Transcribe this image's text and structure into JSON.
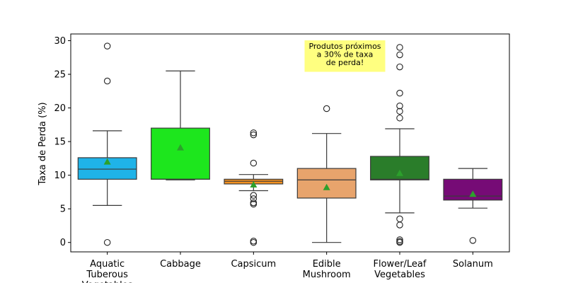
{
  "chart_data": {
    "type": "box",
    "ylabel": "Taxa de Perda (%)",
    "xlabel": "",
    "ylim": [
      -1.4,
      31
    ],
    "yticks": [
      0,
      5,
      10,
      15,
      20,
      25,
      30
    ],
    "grid": false,
    "legend": "none",
    "categories": [
      {
        "label_lines": [
          "Aquatic",
          "Tuberous",
          "Vegetables"
        ],
        "color": "#1fb3e8",
        "q1": 9.4,
        "median": 10.9,
        "q3": 12.6,
        "whisker_low": 5.5,
        "whisker_high": 16.6,
        "mean": 12.0,
        "outliers": [
          0.0,
          24.0,
          29.2
        ]
      },
      {
        "label_lines": [
          "Cabbage"
        ],
        "color": "#1de61d",
        "q1": 9.4,
        "median": 9.4,
        "q3": 17.0,
        "whisker_low": 9.3,
        "whisker_high": 25.5,
        "mean": 14.1,
        "outliers": []
      },
      {
        "label_lines": [
          "Capsicum"
        ],
        "color": "#f39120",
        "q1": 8.7,
        "median": 9.1,
        "q3": 9.4,
        "whisker_low": 7.7,
        "whisker_high": 10.1,
        "mean": 8.6,
        "outliers": [
          0.0,
          0.2,
          5.7,
          5.9,
          6.5,
          7.0,
          11.8,
          16.0,
          16.3
        ]
      },
      {
        "label_lines": [
          "Edible",
          "Mushroom"
        ],
        "color": "#e8a46c",
        "q1": 6.6,
        "median": 9.3,
        "q3": 11.0,
        "whisker_low": 0.0,
        "whisker_high": 16.2,
        "mean": 8.2,
        "outliers": [
          19.9
        ]
      },
      {
        "label_lines": [
          "Flower/Leaf",
          "Vegetables"
        ],
        "color": "#2a7d2a",
        "q1": 9.3,
        "median": 9.4,
        "q3": 12.8,
        "whisker_low": 4.4,
        "whisker_high": 16.9,
        "mean": 10.3,
        "outliers": [
          0.0,
          0.15,
          0.4,
          2.6,
          3.5,
          18.5,
          19.5,
          20.3,
          22.2,
          26.1,
          27.9,
          29.0
        ]
      },
      {
        "label_lines": [
          "Solanum"
        ],
        "color": "#760b76",
        "q1": 6.3,
        "median": 6.9,
        "q3": 9.4,
        "whisker_low": 5.1,
        "whisker_high": 11.0,
        "mean": 7.2,
        "outliers": [
          0.3
        ]
      }
    ],
    "annotation": {
      "lines": [
        "Produtos próximos",
        "a 30% de taxa",
        "de perda!"
      ],
      "background": "#ffff80",
      "anchor_category": 3.25,
      "anchor_y": 29.0
    },
    "mean_marker_color": "#2ca02c"
  }
}
